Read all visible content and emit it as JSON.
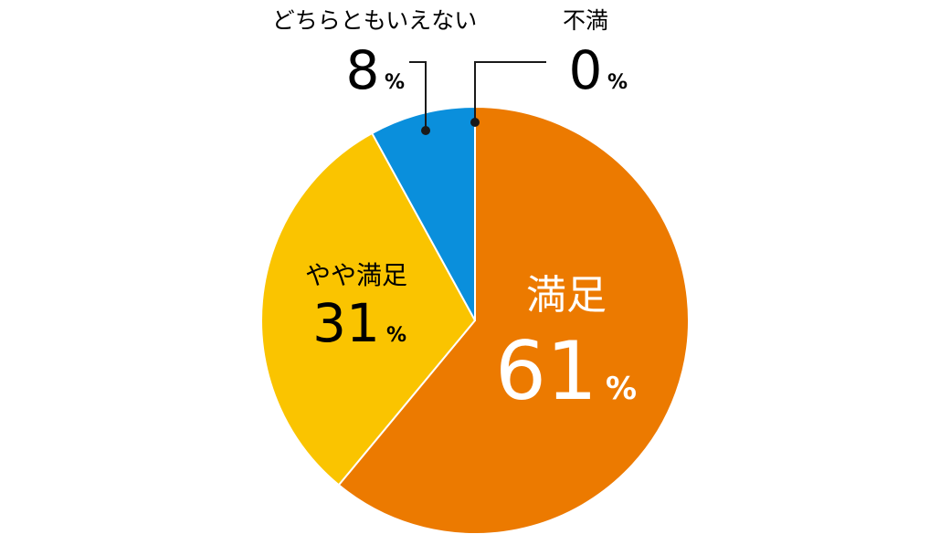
{
  "chart_data": {
    "type": "pie",
    "categories": [
      "満足",
      "やや満足",
      "どちらともいえない",
      "不満"
    ],
    "values": [
      61,
      31,
      8,
      0
    ],
    "display_values": [
      "61",
      "31",
      "8",
      "0"
    ],
    "percent_symbol": "%",
    "colors": [
      "#ec7a00",
      "#fac400",
      "#0a8fdc",
      "#5b9bd5"
    ],
    "label_colors": [
      "#ffffff",
      "#000000",
      "#000000",
      "#000000"
    ],
    "start_angle_deg": 0,
    "direction": "clockwise",
    "title": ""
  }
}
